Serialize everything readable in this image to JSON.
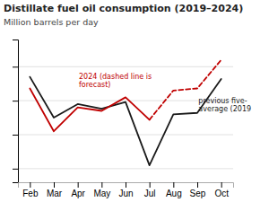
{
  "chart_data": {
    "type": "line",
    "title": "Distillate fuel oil consumption (2019–2024)",
    "subtitle": "Million barrels per day",
    "categories": [
      "Feb",
      "Mar",
      "Apr",
      "May",
      "Jun",
      "Jul",
      "Aug",
      "Sep",
      "Oct"
    ],
    "series": [
      {
        "color": "#1a1a1a",
        "line_style": "solid",
        "values": [
          3.85,
          3.25,
          3.45,
          3.38,
          3.48,
          2.55,
          3.3,
          3.32,
          3.82
        ]
      },
      {
        "color": "#c00000",
        "line_style": "solid",
        "values": [
          3.68,
          3.05,
          3.4,
          3.35,
          3.55,
          3.22,
          null,
          null,
          null
        ]
      },
      {
        "color": "#c00000",
        "line_style": "dashed",
        "values": [
          null,
          null,
          null,
          null,
          null,
          3.22,
          3.65,
          3.68,
          4.1
        ]
      }
    ],
    "ylim": [
      2.3,
      4.4
    ],
    "yticks": [
      2.5,
      3,
      3.5,
      4
    ],
    "grid": true,
    "tick_labels": "x",
    "annotations": [
      {
        "text": "2024 (dashed line is\nforecast)",
        "x": 2.05,
        "y": 3.9,
        "color": "#c00000"
      },
      {
        "text": "previous five-\naverage (2019",
        "x": 7.05,
        "y": 3.55,
        "color": "#1a1a1a"
      }
    ]
  }
}
